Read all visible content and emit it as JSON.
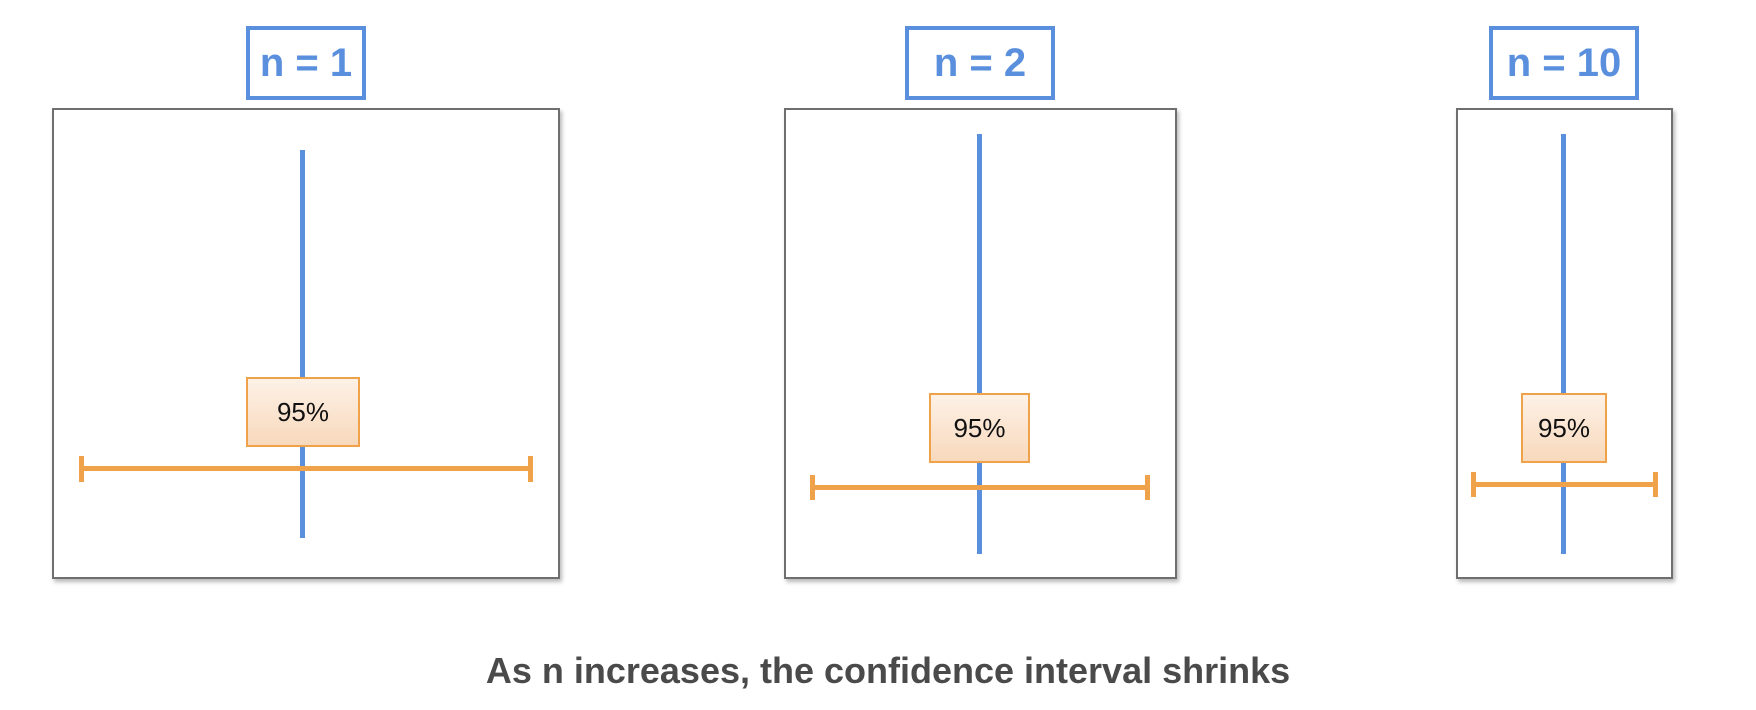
{
  "panels": [
    {
      "label": "n = 1",
      "confidence_label": "95%"
    },
    {
      "label": "n = 2",
      "confidence_label": "95%"
    },
    {
      "label": "n = 10",
      "confidence_label": "95%"
    }
  ],
  "caption": "As n increases, the confidence interval shrinks",
  "colors": {
    "mean_line": "#5a8fde",
    "interval": "#f0a24a",
    "label_border": "#5a8fde",
    "badge_fill": "#f8d9bc",
    "caption_text": "#4a4a4a"
  }
}
